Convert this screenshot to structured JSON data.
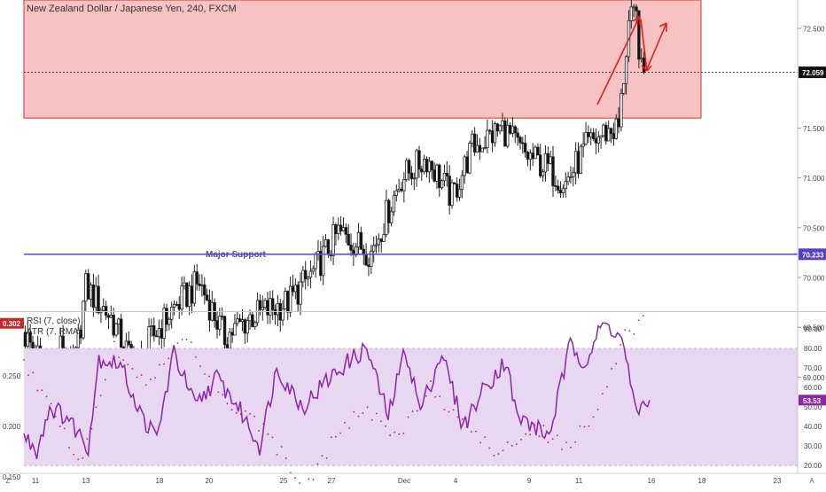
{
  "header": {
    "title": "New Zealand Dollar / Japanese Yen, 240, FXCM"
  },
  "colors": {
    "up": "#ffffff",
    "down": "#111111",
    "wick": "#222222",
    "resistance_fill": "#f4b7b7",
    "resistance_border": "#e03030",
    "support_line": "#6a4fd0",
    "rsi_line": "#8e24aa",
    "rsi_band": "#e7d7f0",
    "atr_dots": "#c2185b",
    "arrow": "#e32020",
    "badge_dark": "#111111",
    "badge_support": "#5b3fc4",
    "badge_rsi": "#8e24aa",
    "badge_atr": "#c62828"
  },
  "price_axis": {
    "ticks": [
      "72.500",
      "71.500",
      "71.000",
      "70.500",
      "70.000",
      "69.500",
      "69.000"
    ]
  },
  "price_badges": {
    "current": "72.059",
    "support": "70.233"
  },
  "annotations": {
    "support_label": "Major Support"
  },
  "indicators": {
    "rsi_label": "RSI (7, close)",
    "atr_label": "ATR (7, RMA)",
    "rsi_value": "53.53",
    "atr_value": "0.302",
    "rsi_ticks": [
      "90.00",
      "80.00",
      "70.00",
      "60.00",
      "50.00",
      "40.00",
      "30.00",
      "20.00"
    ],
    "atr_ticks": [
      "0.250",
      "0.200",
      "0.150"
    ]
  },
  "time_axis": {
    "labels": [
      "11",
      "13",
      "18",
      "20",
      "25",
      "27",
      "Dec",
      "4",
      "9",
      "11",
      "16",
      "18",
      "23"
    ],
    "left_corner": "Z",
    "right_corner": "A"
  },
  "chart_data": {
    "type": "candlestick",
    "price_range": [
      68.75,
      72.9
    ],
    "support_level": 70.233,
    "current_price": 72.059,
    "resistance_zone": [
      71.6,
      72.9
    ],
    "rsi_range": [
      20,
      90
    ],
    "rsi_band": [
      20,
      80
    ],
    "atr_range": [
      0.13,
      0.31
    ]
  }
}
